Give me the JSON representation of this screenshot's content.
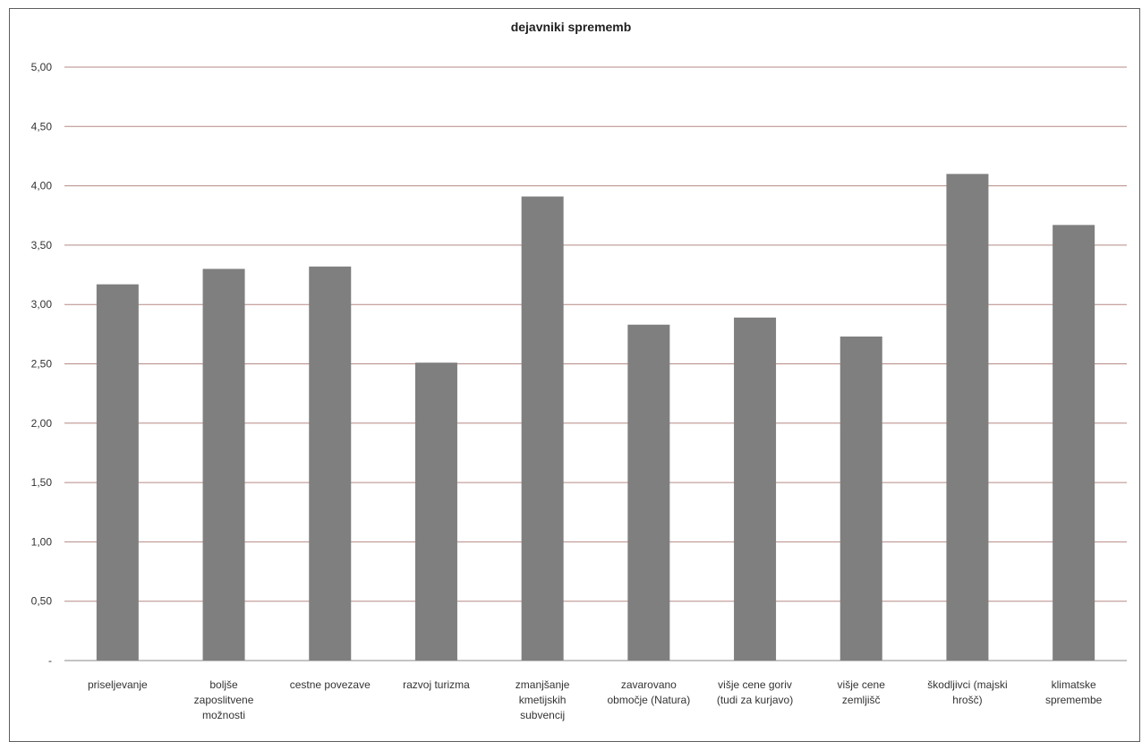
{
  "chart_data": {
    "type": "bar",
    "title": "dejavniki sprememb",
    "xlabel": "",
    "ylabel": "",
    "ylim": [
      0,
      5
    ],
    "yticks": [
      "-",
      "0,50",
      "1,00",
      "1,50",
      "2,00",
      "2,50",
      "3,00",
      "3,50",
      "4,00",
      "4,50",
      "5,00"
    ],
    "categories": [
      "priseljevanje",
      "boljše zaposlitvene možnosti",
      "cestne povezave",
      "razvoj turizma",
      "zmanjšanje kmetijskih subvencij",
      "zavarovano območje (Natura)",
      "višje cene goriv (tudi za kurjavo)",
      "višje cene zemljišč",
      "škodljivci (majski hrošč)",
      "klimatske spremembe"
    ],
    "category_lines": [
      [
        "priseljevanje"
      ],
      [
        "boljše",
        "zaposlitvene",
        "možnosti"
      ],
      [
        "cestne povezave"
      ],
      [
        "razvoj turizma"
      ],
      [
        "zmanjšanje",
        "kmetijskih",
        "subvencij"
      ],
      [
        "zavarovano",
        "območje (Natura)"
      ],
      [
        "višje cene goriv",
        "(tudi za kurjavo)"
      ],
      [
        "višje cene",
        "zemljišč"
      ],
      [
        "škodljivci (majski",
        "hrošč)"
      ],
      [
        "klimatske",
        "spremembe"
      ]
    ],
    "values": [
      3.17,
      3.3,
      3.32,
      2.51,
      3.91,
      2.83,
      2.89,
      2.73,
      4.1,
      3.67
    ],
    "grid": true,
    "legend": "none",
    "colors": {
      "bar": "#7f7f7f",
      "grid": "#b58a85",
      "axis": "#888888"
    }
  }
}
